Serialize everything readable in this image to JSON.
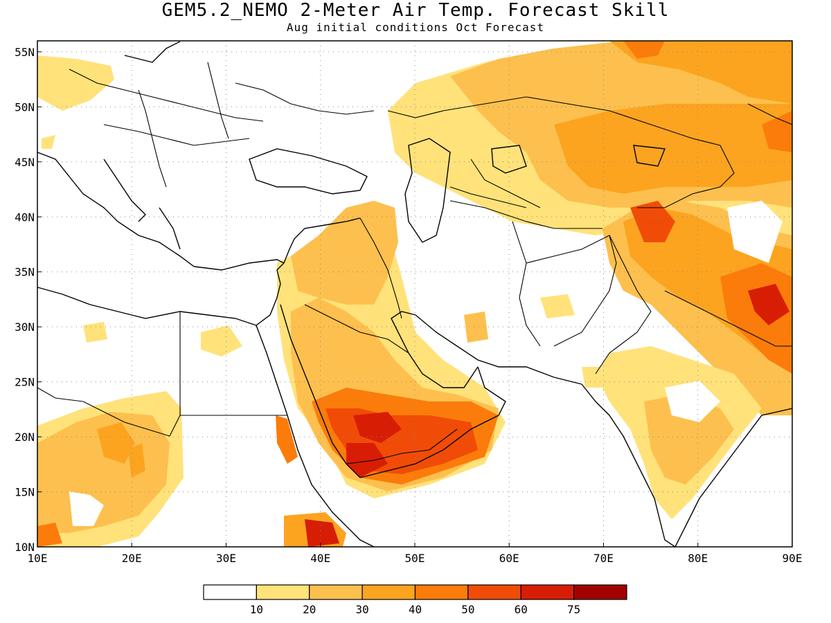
{
  "title": "GEM5.2_NEMO 2-Meter Air Temp. Forecast Skill",
  "subtitle": "Aug initial conditions  Oct Forecast",
  "map": {
    "lon_range": [
      10,
      90
    ],
    "lat_range": [
      10,
      56
    ],
    "grid": "dotted",
    "x_ticks": [
      "10E",
      "20E",
      "30E",
      "40E",
      "50E",
      "60E",
      "70E",
      "80E",
      "90E"
    ],
    "y_ticks": [
      "10N",
      "15N",
      "20N",
      "25N",
      "30N",
      "35N",
      "40N",
      "45N",
      "50N",
      "55N"
    ]
  },
  "colorbar": {
    "colors": [
      "#ffffff",
      "#ffe27a",
      "#fdc04e",
      "#fca420",
      "#fb7c0a",
      "#f04c07",
      "#d81d05",
      "#a20000"
    ],
    "labels": [
      "10",
      "20",
      "30",
      "40",
      "50",
      "60",
      "75"
    ]
  }
}
